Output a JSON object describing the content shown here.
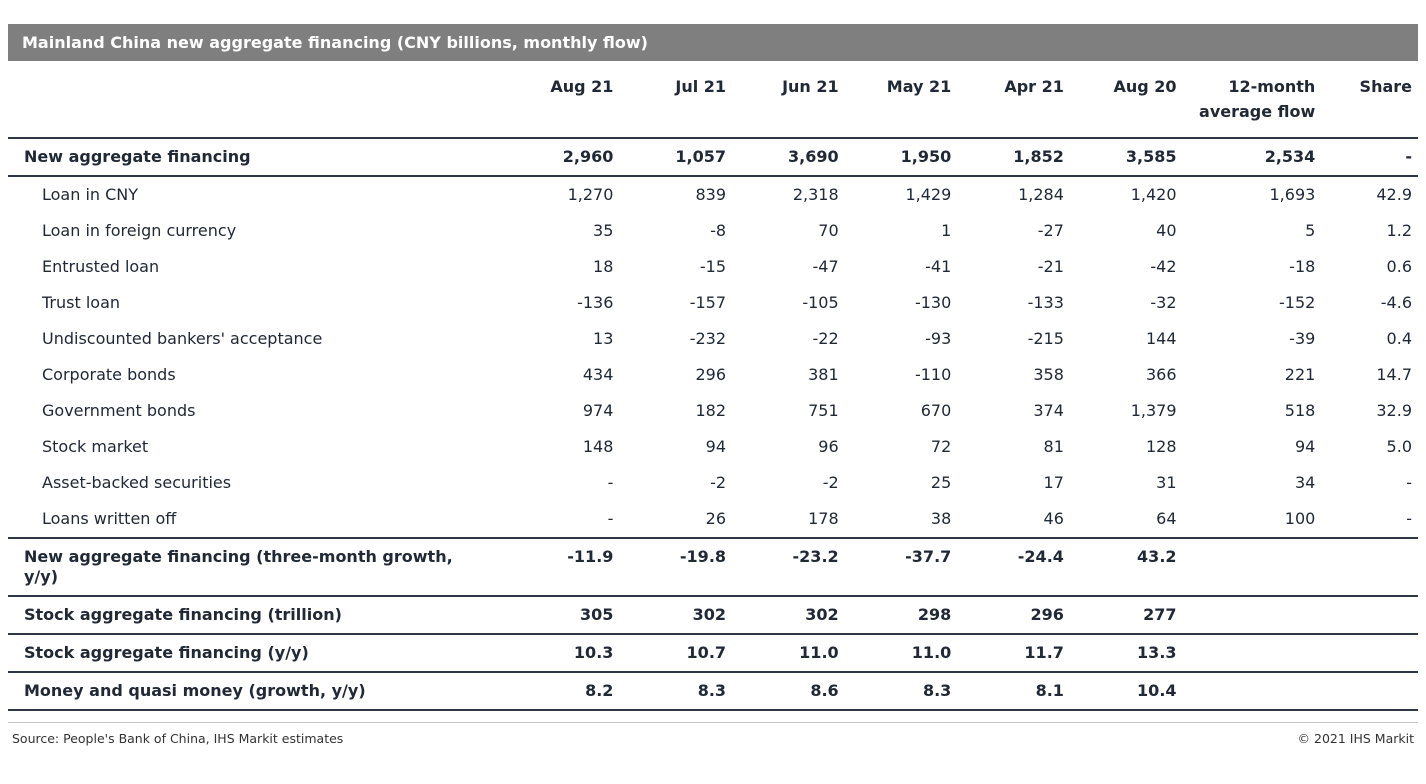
{
  "colors": {
    "title_bar_bg": "#7f7f7f",
    "title_text": "#ffffff",
    "text": "#212936",
    "rule_dark": "#2f3744",
    "rule_light": "#c6c6c6"
  },
  "chart_data": {
    "type": "table",
    "title": "Mainland China new aggregate financing (CNY billions, monthly flow)",
    "columns": [
      "Aug 21",
      "Jul 21",
      "Jun 21",
      "May 21",
      "Apr 21",
      "Aug 20",
      "12-month average flow",
      "Share"
    ],
    "rows": [
      {
        "label": "New aggregate financing",
        "bold": true,
        "indent": false,
        "bottom_border": true,
        "values": [
          "2,960",
          "1,057",
          "3,690",
          "1,950",
          "1,852",
          "3,585",
          "2,534",
          "-"
        ]
      },
      {
        "label": "Loan in CNY",
        "bold": false,
        "indent": true,
        "bottom_border": false,
        "values": [
          "1,270",
          "839",
          "2,318",
          "1,429",
          "1,284",
          "1,420",
          "1,693",
          "42.9"
        ]
      },
      {
        "label": "Loan in foreign currency",
        "bold": false,
        "indent": true,
        "bottom_border": false,
        "values": [
          "35",
          "-8",
          "70",
          "1",
          "-27",
          "40",
          "5",
          "1.2"
        ]
      },
      {
        "label": "Entrusted loan",
        "bold": false,
        "indent": true,
        "bottom_border": false,
        "values": [
          "18",
          "-15",
          "-47",
          "-41",
          "-21",
          "-42",
          "-18",
          "0.6"
        ]
      },
      {
        "label": "Trust loan",
        "bold": false,
        "indent": true,
        "bottom_border": false,
        "values": [
          "-136",
          "-157",
          "-105",
          "-130",
          "-133",
          "-32",
          "-152",
          "-4.6"
        ]
      },
      {
        "label": "Undiscounted bankers' acceptance",
        "bold": false,
        "indent": true,
        "bottom_border": false,
        "values": [
          "13",
          "-232",
          "-22",
          "-93",
          "-215",
          "144",
          "-39",
          "0.4"
        ]
      },
      {
        "label": "Corporate bonds",
        "bold": false,
        "indent": true,
        "bottom_border": false,
        "values": [
          "434",
          "296",
          "381",
          "-110",
          "358",
          "366",
          "221",
          "14.7"
        ]
      },
      {
        "label": "Government bonds",
        "bold": false,
        "indent": true,
        "bottom_border": false,
        "values": [
          "974",
          "182",
          "751",
          "670",
          "374",
          "1,379",
          "518",
          "32.9"
        ]
      },
      {
        "label": "Stock market",
        "bold": false,
        "indent": true,
        "bottom_border": false,
        "values": [
          "148",
          "94",
          "96",
          "72",
          "81",
          "128",
          "94",
          "5.0"
        ]
      },
      {
        "label": "Asset-backed securities",
        "bold": false,
        "indent": true,
        "bottom_border": false,
        "values": [
          "-",
          "-2",
          "-2",
          "25",
          "17",
          "31",
          "34",
          "-"
        ]
      },
      {
        "label": "Loans written off",
        "bold": false,
        "indent": true,
        "bottom_border": true,
        "values": [
          "-",
          "26",
          "178",
          "38",
          "46",
          "64",
          "100",
          "-"
        ]
      },
      {
        "label": "New aggregate financing (three-month growth, y/y)",
        "bold": true,
        "indent": false,
        "bottom_border": true,
        "values": [
          "-11.9",
          "-19.8",
          "-23.2",
          "-37.7",
          "-24.4",
          "43.2",
          "",
          ""
        ]
      },
      {
        "label": "Stock aggregate financing (trillion)",
        "bold": true,
        "indent": false,
        "bottom_border": true,
        "values": [
          "305",
          "302",
          "302",
          "298",
          "296",
          "277",
          "",
          ""
        ]
      },
      {
        "label": "Stock aggregate financing (y/y)",
        "bold": true,
        "indent": false,
        "bottom_border": true,
        "values": [
          "10.3",
          "10.7",
          "11.0",
          "11.0",
          "11.7",
          "13.3",
          "",
          ""
        ]
      },
      {
        "label": "Money and quasi money (growth, y/y)",
        "bold": true,
        "indent": false,
        "bottom_border": true,
        "values": [
          "8.2",
          "8.3",
          "8.6",
          "8.3",
          "8.1",
          "10.4",
          "",
          ""
        ]
      }
    ]
  },
  "footer": {
    "source": "Source: People's Bank of China, IHS Markit estimates",
    "copyright": "© 2021 IHS Markit"
  }
}
